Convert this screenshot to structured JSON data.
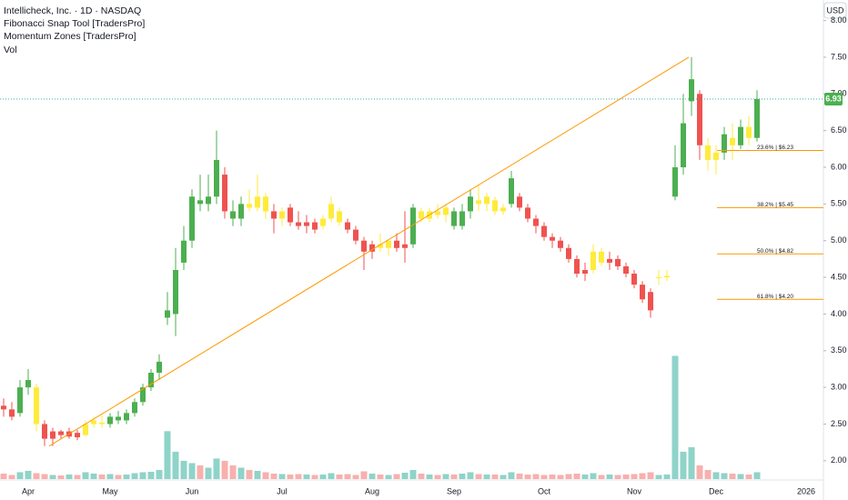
{
  "chart_data": {
    "type": "candlestick",
    "title": "Intellicheck, Inc. · 1D · NASDAQ",
    "indicators": [
      "Fibonacci Snap Tool [TradersPro]",
      "Momentum Zones [TradersPro]",
      "Vol"
    ],
    "currency": "USD",
    "categories": [
      null,
      null,
      null,
      "Apr",
      null,
      null,
      null,
      null,
      null,
      null,
      null,
      null,
      null,
      "May",
      null,
      null,
      null,
      null,
      null,
      null,
      null,
      null,
      null,
      "Jun",
      null,
      null,
      null,
      null,
      null,
      null,
      null,
      null,
      null,
      null,
      "Jul",
      null,
      null,
      null,
      null,
      null,
      null,
      null,
      null,
      null,
      null,
      "Aug",
      null,
      null,
      null,
      null,
      null,
      null,
      null,
      null,
      null,
      "Sep",
      null,
      null,
      null,
      null,
      null,
      null,
      null,
      null,
      null,
      null,
      "Oct",
      null,
      null,
      null,
      null,
      null,
      null,
      null,
      null,
      null,
      null,
      "Nov",
      null,
      null,
      null,
      null,
      null,
      null,
      null,
      null,
      null,
      "Dec",
      null,
      null,
      null,
      null,
      null,
      null,
      null,
      null,
      null,
      null,
      "2026"
    ],
    "open": [
      2.75,
      2.7,
      2.65,
      3.0,
      3.0,
      2.5,
      2.3,
      2.4,
      2.33,
      2.38,
      2.35,
      2.5,
      2.52,
      2.5,
      2.6,
      2.55,
      2.65,
      2.8,
      3.0,
      3.2,
      3.95,
      4.0,
      4.7,
      5.0,
      5.55,
      5.5,
      5.6,
      5.9,
      5.4,
      5.3,
      5.5,
      5.45,
      5.6,
      5.4,
      5.3,
      5.45,
      5.25,
      5.2,
      5.25,
      5.2,
      5.3,
      5.4,
      5.25,
      5.15,
      5.0,
      4.85,
      4.95,
      4.9,
      5.0,
      4.9,
      4.95,
      5.4,
      5.3,
      5.4,
      5.35,
      5.4,
      5.2,
      5.4,
      5.55,
      5.5,
      5.55,
      5.4,
      5.5,
      5.6,
      5.45,
      5.3,
      5.2,
      5.05,
      5.0,
      4.9,
      4.75,
      4.55,
      4.6,
      4.85,
      4.7,
      4.75,
      4.65,
      4.55,
      4.4,
      4.3,
      4.5,
      4.5,
      5.6,
      6.0,
      6.9,
      7.0,
      6.3,
      6.1,
      6.2,
      6.4,
      6.3,
      6.55,
      6.4,
      null,
      null,
      null,
      null,
      null,
      null
    ],
    "high": [
      2.85,
      2.8,
      3.1,
      3.25,
      3.05,
      2.55,
      2.45,
      2.42,
      2.45,
      2.42,
      2.55,
      2.6,
      2.62,
      2.65,
      2.68,
      2.7,
      2.85,
      3.05,
      3.25,
      3.45,
      4.3,
      4.9,
      5.2,
      5.7,
      5.9,
      5.9,
      6.5,
      6.0,
      5.55,
      5.6,
      5.7,
      5.9,
      5.65,
      5.5,
      5.45,
      5.5,
      5.4,
      5.35,
      5.3,
      5.35,
      5.6,
      5.45,
      5.3,
      5.2,
      5.05,
      5.0,
      5.1,
      5.0,
      5.1,
      5.4,
      5.5,
      5.45,
      5.45,
      5.5,
      5.5,
      5.45,
      5.5,
      5.7,
      5.75,
      5.65,
      5.6,
      5.5,
      5.95,
      5.65,
      5.5,
      5.35,
      5.25,
      5.1,
      5.05,
      4.95,
      4.8,
      4.7,
      4.95,
      4.9,
      4.85,
      4.8,
      4.7,
      4.6,
      4.45,
      4.35,
      4.6,
      4.6,
      6.3,
      7.0,
      7.5,
      7.05,
      6.4,
      6.3,
      6.55,
      6.6,
      6.65,
      6.7,
      7.05,
      null,
      null,
      null,
      null,
      null,
      null
    ],
    "low": [
      2.6,
      2.55,
      2.6,
      2.9,
      2.4,
      2.2,
      2.2,
      2.3,
      2.3,
      2.28,
      2.33,
      2.45,
      2.45,
      2.45,
      2.5,
      2.5,
      2.6,
      2.75,
      2.95,
      3.1,
      3.85,
      3.7,
      4.6,
      4.9,
      5.4,
      5.4,
      5.5,
      5.3,
      5.2,
      5.2,
      5.4,
      5.4,
      5.3,
      5.1,
      5.2,
      5.2,
      5.15,
      5.1,
      5.1,
      5.15,
      5.25,
      5.2,
      5.1,
      4.95,
      4.6,
      4.75,
      4.85,
      4.8,
      4.85,
      4.7,
      4.9,
      5.25,
      5.25,
      5.3,
      5.25,
      5.15,
      5.15,
      5.3,
      5.4,
      5.4,
      5.35,
      5.35,
      5.45,
      5.4,
      5.25,
      5.1,
      5.0,
      4.9,
      4.85,
      4.7,
      4.5,
      4.45,
      4.55,
      4.65,
      4.6,
      4.6,
      4.5,
      4.35,
      4.15,
      3.95,
      4.4,
      4.45,
      5.55,
      5.9,
      6.7,
      6.1,
      5.95,
      5.9,
      6.1,
      6.1,
      6.25,
      6.3,
      6.35,
      null,
      null,
      null,
      null,
      null,
      null
    ],
    "close": [
      2.7,
      2.6,
      3.0,
      3.1,
      2.5,
      2.3,
      2.4,
      2.35,
      2.4,
      2.32,
      2.5,
      2.55,
      2.5,
      2.6,
      2.55,
      2.65,
      2.8,
      3.0,
      3.2,
      3.35,
      4.05,
      4.6,
      5.0,
      5.6,
      5.5,
      5.6,
      6.1,
      5.4,
      5.3,
      5.5,
      5.45,
      5.6,
      5.4,
      5.3,
      5.4,
      5.25,
      5.2,
      5.25,
      5.15,
      5.3,
      5.5,
      5.25,
      5.15,
      5.0,
      4.85,
      4.95,
      4.9,
      5.0,
      4.9,
      4.95,
      5.45,
      5.3,
      5.4,
      5.35,
      5.45,
      5.2,
      5.4,
      5.6,
      5.5,
      5.6,
      5.4,
      5.45,
      5.85,
      5.45,
      5.3,
      5.2,
      5.05,
      5.0,
      4.9,
      4.75,
      4.55,
      4.6,
      4.85,
      4.7,
      4.75,
      4.65,
      4.55,
      4.4,
      4.2,
      4.05,
      4.5,
      4.52,
      6.0,
      6.6,
      7.2,
      6.3,
      6.1,
      6.2,
      6.45,
      6.3,
      6.55,
      6.4,
      6.93,
      null,
      null,
      null,
      null,
      null,
      null
    ],
    "volume": [
      120,
      90,
      150,
      180,
      130,
      110,
      90,
      80,
      100,
      90,
      150,
      120,
      100,
      110,
      90,
      100,
      130,
      150,
      160,
      200,
      1050,
      600,
      400,
      350,
      300,
      250,
      450,
      400,
      300,
      250,
      200,
      180,
      150,
      120,
      110,
      100,
      110,
      100,
      90,
      100,
      130,
      100,
      110,
      90,
      170,
      120,
      100,
      90,
      110,
      140,
      200,
      120,
      100,
      90,
      110,
      100,
      120,
      150,
      110,
      100,
      100,
      90,
      150,
      120,
      100,
      110,
      90,
      100,
      90,
      110,
      120,
      100,
      130,
      90,
      100,
      90,
      100,
      110,
      130,
      150,
      90,
      100,
      2700,
      600,
      700,
      300,
      200,
      150,
      130,
      120,
      110,
      100,
      150,
      null,
      null,
      null,
      null,
      null,
      null
    ],
    "candle_colors": [
      "#ef5350",
      "#ef5350",
      "#4caf50",
      "#4caf50",
      "#ffeb3b",
      "#ef5350",
      "#ef5350",
      "#ef5350",
      "#ef5350",
      "#ef5350",
      "#ffeb3b",
      "#ffeb3b",
      "#ffeb3b",
      "#4caf50",
      "#4caf50",
      "#4caf50",
      "#4caf50",
      "#4caf50",
      "#4caf50",
      "#4caf50",
      "#4caf50",
      "#4caf50",
      "#4caf50",
      "#4caf50",
      "#4caf50",
      "#4caf50",
      "#4caf50",
      "#ef5350",
      "#4caf50",
      "#4caf50",
      "#ffeb3b",
      "#ffeb3b",
      "#ffeb3b",
      "#ef5350",
      "#ffeb3b",
      "#ef5350",
      "#ef5350",
      "#ef5350",
      "#ef5350",
      "#ffeb3b",
      "#ffeb3b",
      "#ffeb3b",
      "#ef5350",
      "#ef5350",
      "#ef5350",
      "#ef5350",
      "#ffeb3b",
      "#ffeb3b",
      "#ef5350",
      "#ef5350",
      "#4caf50",
      "#ffeb3b",
      "#ffeb3b",
      "#ffeb3b",
      "#ffeb3b",
      "#4caf50",
      "#4caf50",
      "#4caf50",
      "#ffeb3b",
      "#ffeb3b",
      "#ffeb3b",
      "#ffeb3b",
      "#4caf50",
      "#ef5350",
      "#ef5350",
      "#ef5350",
      "#ef5350",
      "#ef5350",
      "#ef5350",
      "#ef5350",
      "#ef5350",
      "#ef5350",
      "#ffeb3b",
      "#ffeb3b",
      "#ef5350",
      "#ef5350",
      "#ef5350",
      "#ef5350",
      "#ef5350",
      "#ef5350",
      "#ffeb3b",
      "#ffeb3b",
      "#4caf50",
      "#4caf50",
      "#4caf50",
      "#ef5350",
      "#ffeb3b",
      "#ffeb3b",
      "#4caf50",
      "#ffeb3b",
      "#4caf50",
      "#ffeb3b",
      "#4caf50",
      null,
      null,
      null,
      null,
      null,
      null
    ],
    "volume_colors": {
      "up": "#8fd3c9",
      "down": "#f7b0ae"
    },
    "ylim": [
      1.75,
      8.28
    ],
    "yticks": [
      {
        "value": 2,
        "label": "2.00"
      },
      {
        "value": 2.5,
        "label": "2.50"
      },
      {
        "value": 3,
        "label": "3.00"
      },
      {
        "value": 3.5,
        "label": "3.50"
      },
      {
        "value": 4,
        "label": "4.00"
      },
      {
        "value": 4.5,
        "label": "4.50"
      },
      {
        "value": 5,
        "label": "5.00"
      },
      {
        "value": 5.5,
        "label": "5.50"
      },
      {
        "value": 6,
        "label": "6.00"
      },
      {
        "value": 6.5,
        "label": "6.50"
      },
      {
        "value": 7,
        "label": "7.00"
      },
      {
        "value": 7.5,
        "label": "7.50"
      },
      {
        "value": 8,
        "label": "8.00"
      }
    ],
    "vlim": [
      0,
      10500
    ],
    "last_price": 6.93,
    "last_price_color": "#4caf50",
    "trendline": {
      "start": 2.2,
      "end": 7.5,
      "color": "#ff9800"
    },
    "fibonacci": {
      "color": "#ff9800",
      "levels": [
        {
          "value": 6.23,
          "label": "23.6% | $6.23"
        },
        {
          "value": 5.45,
          "label": "38.2% | $5.45"
        },
        {
          "value": 4.82,
          "label": "50.0% | $4.82"
        },
        {
          "value": 4.2,
          "label": "61.8% | $4.20"
        }
      ]
    }
  }
}
